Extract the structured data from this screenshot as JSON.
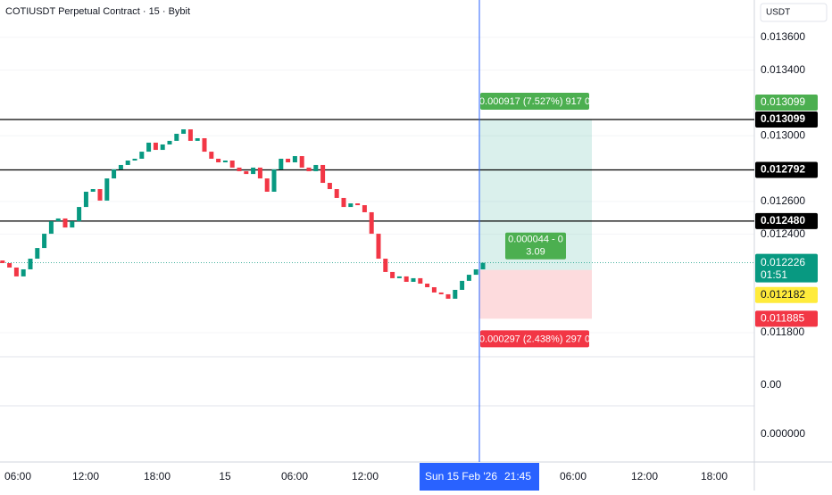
{
  "header": {
    "title": "COTIUSDT Perpetual Contract · 15 · Bybit"
  },
  "price_axis": {
    "unit": "USDT",
    "ticks": [
      {
        "value": 0.0136,
        "label": "0.013600"
      },
      {
        "value": 0.0134,
        "label": "0.013400"
      },
      {
        "value": 0.013,
        "label": "0.013000"
      },
      {
        "value": 0.0126,
        "label": "0.012600"
      },
      {
        "value": 0.0124,
        "label": "0.012400"
      },
      {
        "value": 0.0118,
        "label": "0.011800"
      }
    ],
    "lower_panes": [
      "0.00",
      "0.000000"
    ]
  },
  "levels": [
    {
      "value": 0.013099,
      "label": "0.013099"
    },
    {
      "value": 0.012792,
      "label": "0.012792"
    },
    {
      "value": 0.01248,
      "label": "0.012480"
    }
  ],
  "current_price": {
    "value": 0.012226,
    "label": "0.012226",
    "countdown": "01:51"
  },
  "position": {
    "target": {
      "value": 0.013099,
      "label": "0.013099",
      "stat": "0.000917 (7.527%) 917 0"
    },
    "entry": {
      "value": 0.012182,
      "label": "0.012182",
      "stat": "0.000044 - 0",
      "ratio": "3.09"
    },
    "stop": {
      "value": 0.011885,
      "label": "0.011885",
      "stat": "0.000297 (2.438%) 297 0"
    }
  },
  "time_axis": {
    "labels": [
      "06:00",
      "12:00",
      "18:00",
      "15",
      "06:00",
      "12:00",
      "06:00",
      "12:00",
      "18:00"
    ],
    "cursor_date": "Sun 15 Feb '26",
    "cursor_time": "21:45"
  },
  "candles": {
    "open": [
      0.01224,
      0.012224,
      0.012197,
      0.012143,
      0.012186,
      0.012251,
      0.012316,
      0.012403,
      0.012479,
      0.012496,
      0.012441,
      0.012479,
      0.012566,
      0.012659,
      0.012675,
      0.012605,
      0.01274,
      0.012795,
      0.012822,
      0.012849,
      0.01286,
      0.012903,
      0.012958,
      0.012914,
      0.012947,
      0.012969,
      0.013012,
      0.013039,
      0.012969,
      0.012985,
      0.012903,
      0.01286,
      0.012838,
      0.012849,
      0.012806,
      0.012784,
      0.012767,
      0.012806,
      0.01274,
      0.012659,
      0.012795,
      0.01286,
      0.012838,
      0.012876,
      0.012806,
      0.012784,
      0.012822,
      0.012713,
      0.012675,
      0.012621,
      0.012566,
      0.012588,
      0.012577,
      0.012534,
      0.012403,
      0.012251,
      0.01217,
      0.012132,
      0.012143,
      0.01211,
      0.012132,
      0.012099,
      0.012077,
      0.012045,
      0.012034,
      0.012007,
      0.012061,
      0.012116,
      0.012153,
      0.012186
    ],
    "close": [
      0.012224,
      0.012197,
      0.012143,
      0.012186,
      0.012251,
      0.012316,
      0.012403,
      0.012479,
      0.012496,
      0.012441,
      0.012479,
      0.012566,
      0.012659,
      0.012675,
      0.012605,
      0.01274,
      0.012795,
      0.012822,
      0.012849,
      0.01286,
      0.012903,
      0.012958,
      0.012914,
      0.012947,
      0.012969,
      0.013012,
      0.013039,
      0.012969,
      0.012985,
      0.012903,
      0.01286,
      0.012838,
      0.012849,
      0.012806,
      0.012784,
      0.012767,
      0.012806,
      0.01274,
      0.012659,
      0.012795,
      0.01286,
      0.012838,
      0.012876,
      0.012806,
      0.012784,
      0.012822,
      0.012713,
      0.012675,
      0.012621,
      0.012566,
      0.012588,
      0.012577,
      0.012534,
      0.012403,
      0.012251,
      0.01217,
      0.012132,
      0.012143,
      0.01211,
      0.012132,
      0.012099,
      0.012077,
      0.012045,
      0.012034,
      0.012007,
      0.012061,
      0.012116,
      0.012153,
      0.012186,
      0.012226
    ]
  }
}
